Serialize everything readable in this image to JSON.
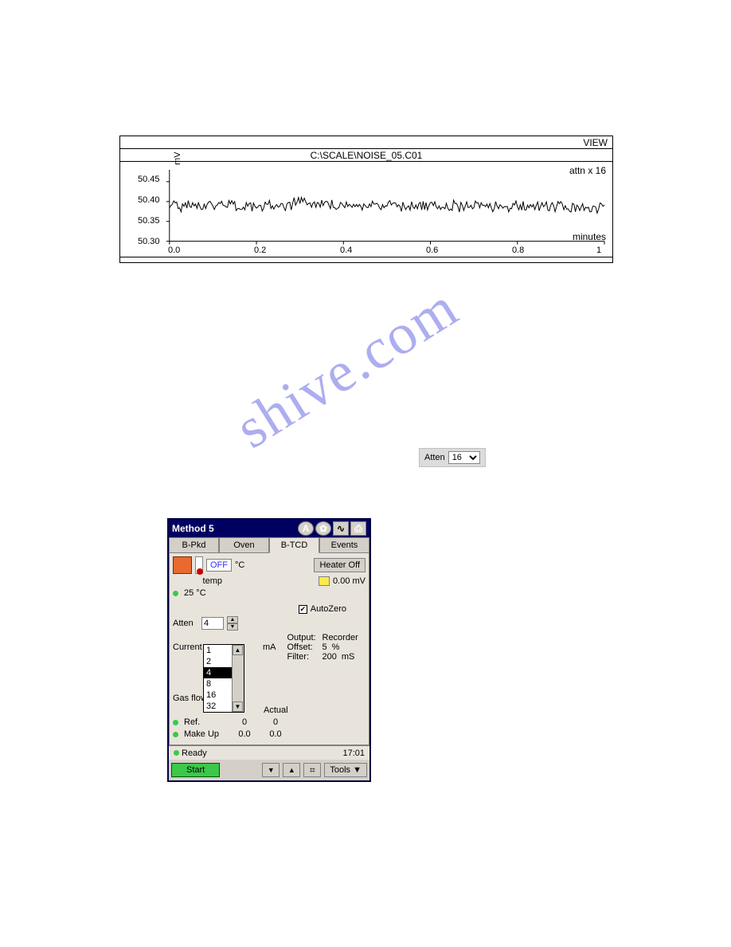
{
  "watermark_text": "shive.com",
  "chart": {
    "type": "line",
    "view_label": "VIEW",
    "title": "C:\\SCALE\\NOISE_05.C01",
    "ylabel": "mV",
    "xlabel": "minutes",
    "attn_label": "attn x 16",
    "y_ticks": [
      "50.45",
      "50.40",
      "50.35",
      "50.30"
    ],
    "x_ticks": [
      "0.0",
      "0.2",
      "0.4",
      "0.6",
      "0.8",
      "1"
    ],
    "xlim": [
      0,
      1
    ],
    "ylim": [
      50.3,
      50.48
    ],
    "series_color": "#000000",
    "background_color": "#ffffff",
    "axis_color": "#000000",
    "signal_baseline": 50.39,
    "signal_noise_pp": 0.025,
    "tick_fontsize": 11
  },
  "atten_control": {
    "label": "Atten",
    "value": "16"
  },
  "method_panel": {
    "title": "Method 5",
    "tabs": [
      "B-Pkd",
      "Oven",
      "B-TCD",
      "Events"
    ],
    "active_tab": "B-TCD",
    "off_display": "OFF",
    "off_unit": "°C",
    "heater_btn": "Heater Off",
    "temp_label": "temp",
    "mv_value": "0.00 mV",
    "cur_temp": "25  °C",
    "autozero_label": "AutoZero",
    "autozero_checked": true,
    "atten": {
      "label": "Atten",
      "value": "4"
    },
    "current": {
      "label": "Current",
      "unit": "mA"
    },
    "dropdown_items": [
      "1",
      "2",
      "4",
      "8",
      "16",
      "32"
    ],
    "dropdown_selected": "4",
    "output": {
      "label": "Output:",
      "value": "Recorder"
    },
    "offset": {
      "label": "Offset:",
      "value": "5",
      "unit": "%"
    },
    "filter": {
      "label": "Filter:",
      "value": "200",
      "unit": "mS"
    },
    "gasflow_label": "Gas flow",
    "actual_label": "Actual",
    "ref_row": {
      "label": "Ref.",
      "set": "0",
      "actual": "0"
    },
    "makeup_row": {
      "label": "Make Up",
      "set": "0.0",
      "actual": "0.0"
    },
    "status": "Ready",
    "time": "17:01",
    "start_btn": "Start",
    "tools_btn": "Tools"
  }
}
